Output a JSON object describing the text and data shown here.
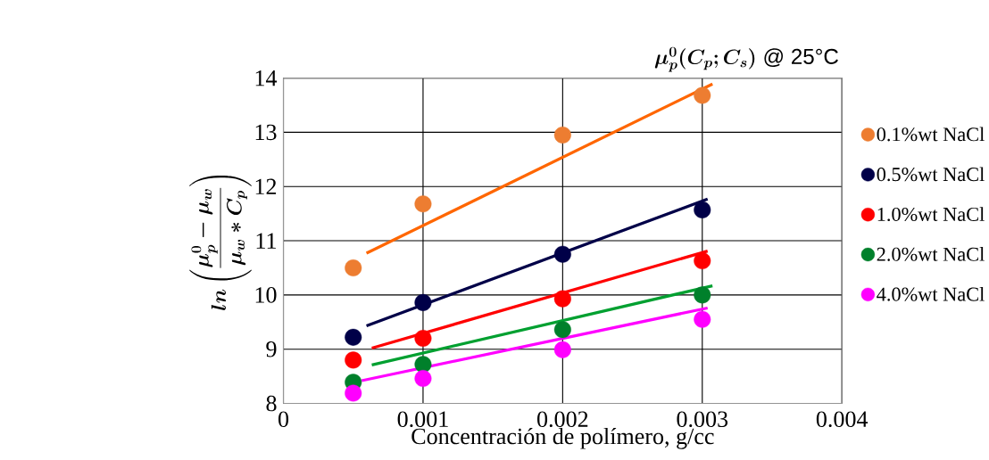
{
  "chart_data": {
    "type": "scatter",
    "title": "\\boldsymbol{\\mu_p^{0}(C_p;C_s)}\\ \\text{@ 25°C}",
    "xlabel": "Concentración de polímero, g/cc",
    "ylabel": "\\boldsymbol{ln\\left(\\frac{\\mu_p^{0}-\\mu_w}{\\mu_w*C_p}\\right)}",
    "x": [
      0.0005,
      0.001,
      0.002,
      0.003
    ],
    "series": [
      {
        "name": "0.1%wt NaCl",
        "color": "#ed7d31",
        "values": [
          10.5,
          11.68,
          12.95,
          13.68
        ]
      },
      {
        "name": "0.5%wt NaCl",
        "color": "#000048",
        "values": [
          9.22,
          9.86,
          10.75,
          11.57
        ]
      },
      {
        "name": "1.0%wt NaCl",
        "color": "#ff0000",
        "values": [
          8.8,
          9.2,
          9.93,
          10.63
        ]
      },
      {
        "name": "2.0%wt NaCl",
        "color": "#00802b",
        "values": [
          8.39,
          8.72,
          9.36,
          10.0
        ]
      },
      {
        "name": "4.0%wt NaCl",
        "color": "#ff00ff",
        "values": [
          8.19,
          8.46,
          8.99,
          9.55
        ]
      },
      {
        "type": "line",
        "color": "#ff6600",
        "x": [
          0.000595,
          0.003073
        ],
        "values": [
          10.77,
          13.89
        ],
        "marker": "none",
        "line_style": "solid"
      },
      {
        "type": "line",
        "color": "#000048",
        "x": [
          0.000595,
          0.003038
        ],
        "values": [
          9.43,
          11.77
        ],
        "marker": "none",
        "line_style": "solid"
      },
      {
        "type": "line",
        "color": "#ff0000",
        "x": [
          0.000633,
          0.003038
        ],
        "values": [
          9.02,
          10.81
        ],
        "marker": "none",
        "line_style": "solid"
      },
      {
        "type": "line",
        "color": "#00a030",
        "x": [
          0.000633,
          0.003073
        ],
        "values": [
          8.71,
          10.17
        ],
        "marker": "none",
        "line_style": "solid"
      },
      {
        "type": "line",
        "color": "#ff00ff",
        "x": [
          0.00056,
          0.003038
        ],
        "values": [
          8.42,
          9.76
        ],
        "marker": "none",
        "line_style": "solid"
      }
    ],
    "xlim": [
      0,
      0.004
    ],
    "xticks": [
      0,
      0.001,
      0.002,
      0.003,
      0.004
    ],
    "ylim": [
      8,
      14
    ],
    "yticks": [
      8,
      9,
      10,
      11,
      12,
      13,
      14
    ],
    "grid": true,
    "legend": "right",
    "marker": "circle"
  }
}
